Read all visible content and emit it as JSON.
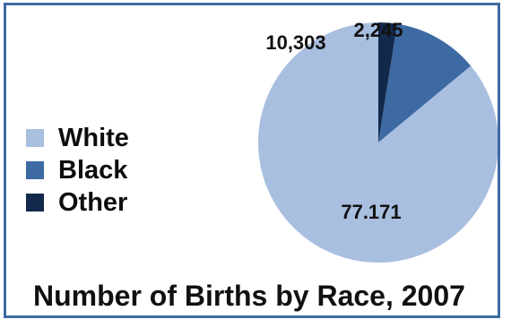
{
  "chart_data": {
    "type": "pie",
    "title": "Number of Births by Race, 2007",
    "categories": [
      "White",
      "Black",
      "Other"
    ],
    "values": [
      77171,
      10303,
      2245
    ],
    "data_labels": [
      "77.171",
      "10,303",
      "2,245"
    ],
    "colors": [
      "#a9bfe0",
      "#3d6aa3",
      "#13294b"
    ],
    "legend": "left",
    "start_angle_deg": 0,
    "direction": "counterclockwise"
  }
}
